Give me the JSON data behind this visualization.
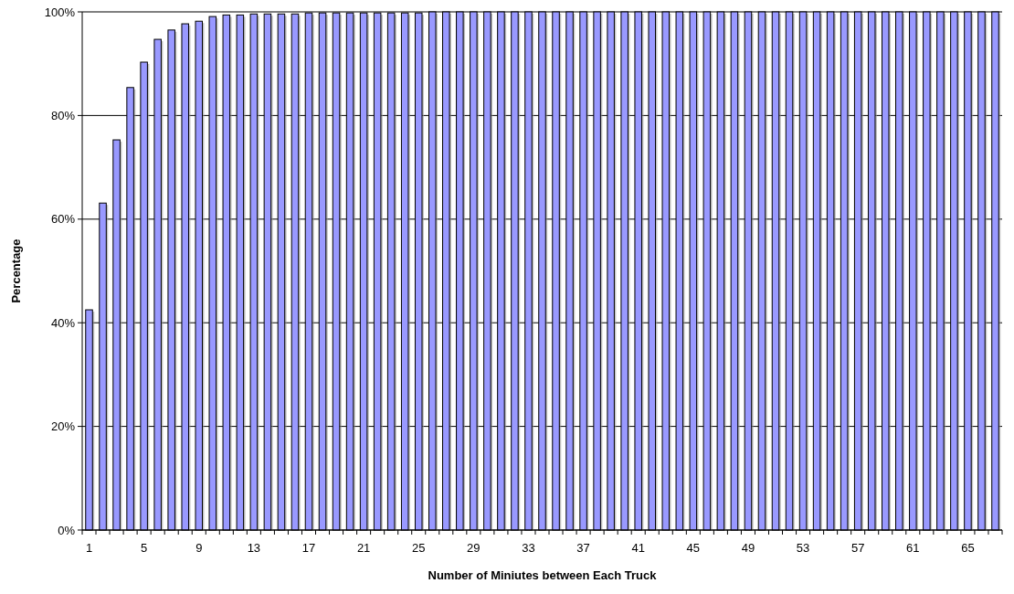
{
  "chart_data": {
    "type": "bar",
    "xlabel": "Number of Miniutes between Each Truck",
    "ylabel": "Percentage",
    "categories": [
      "1",
      null,
      null,
      null,
      "5",
      null,
      null,
      null,
      "9",
      null,
      null,
      null,
      "13",
      null,
      null,
      null,
      "17",
      null,
      null,
      null,
      "21",
      null,
      null,
      null,
      "25",
      null,
      null,
      null,
      "29",
      null,
      null,
      null,
      "33",
      null,
      null,
      null,
      "37",
      null,
      null,
      null,
      "41",
      null,
      null,
      null,
      "45",
      null,
      null,
      null,
      "49",
      null,
      null,
      null,
      "53",
      null,
      null,
      null,
      "57",
      null,
      null,
      null,
      "61",
      null,
      null,
      null,
      "65",
      null,
      null
    ],
    "values": [
      42.5,
      63.1,
      75.3,
      85.4,
      90.3,
      94.7,
      96.5,
      97.7,
      98.2,
      99.1,
      99.4,
      99.4,
      99.6,
      99.6,
      99.6,
      99.6,
      99.8,
      99.8,
      99.8,
      99.8,
      99.8,
      99.8,
      99.8,
      99.8,
      99.8,
      100,
      100,
      100,
      100,
      100,
      100,
      100,
      100,
      100,
      100,
      100,
      100,
      100,
      100,
      100,
      100,
      100,
      100,
      100,
      100,
      100,
      100,
      100,
      100,
      100,
      100,
      100,
      100,
      100,
      100,
      100,
      100,
      100,
      100,
      100,
      100,
      100,
      100,
      100,
      100,
      100,
      100
    ],
    "color": "#9999ff",
    "ylim": [
      0,
      100
    ],
    "yticks": [
      {
        "value": 0,
        "label": "0%"
      },
      {
        "value": 20,
        "label": "20%"
      },
      {
        "value": 40,
        "label": "40%"
      },
      {
        "value": 60,
        "label": "60%"
      },
      {
        "value": 80,
        "label": "80%"
      },
      {
        "value": 100,
        "label": "100%"
      }
    ],
    "grid": "y"
  }
}
